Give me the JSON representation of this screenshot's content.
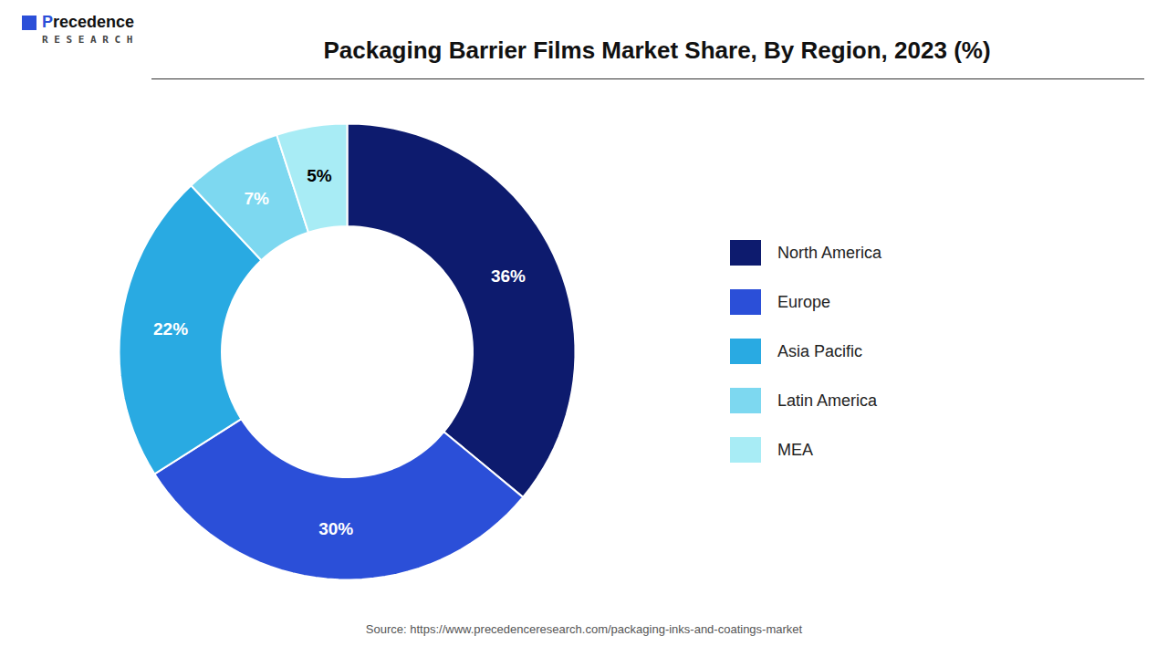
{
  "chart_data": {
    "type": "pie",
    "title": "Packaging Barrier Films Market Share, By Region, 2023 (%)",
    "categories": [
      "North America",
      "Europe",
      "Asia Pacific",
      "Latin America",
      "MEA"
    ],
    "values": [
      36,
      30,
      22,
      7,
      5
    ],
    "value_labels": [
      "36%",
      "30%",
      "22%",
      "7%",
      "5%"
    ],
    "colors": [
      "#0d1b6e",
      "#2b4fd8",
      "#29aae2",
      "#7dd8f0",
      "#a8ecf5"
    ],
    "data_labels": true,
    "legend": "right",
    "caption": "Source: https://www.precedenceresearch.com/packaging-inks-and-coatings-market",
    "annotations": [
      "Precedence",
      "R E S E A R C H"
    ]
  }
}
